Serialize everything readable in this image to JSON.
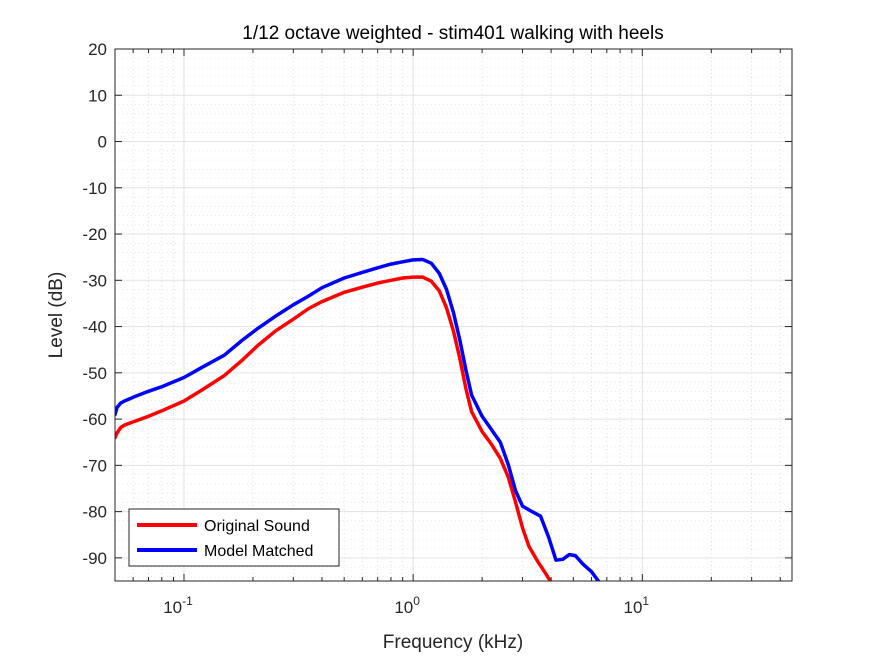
{
  "chart_data": {
    "type": "line",
    "title": "1/12 octave weighted - stim401 walking with heels",
    "xlabel": "Frequency (kHz)",
    "ylabel": "Level (dB)",
    "xscale": "log",
    "xlim": [
      0.05,
      45
    ],
    "ylim": [
      -95,
      20
    ],
    "grid": true,
    "minor_grid": true,
    "legend_position": "bottom-left",
    "yticks": [
      20,
      10,
      0,
      -10,
      -20,
      -30,
      -40,
      -50,
      -60,
      -70,
      -80,
      -90
    ],
    "ytick_labels": [
      "20",
      "10",
      "0",
      "-10",
      "-20",
      "-30",
      "-40",
      "-50",
      "-60",
      "-70",
      "-80",
      "-90"
    ],
    "xticks": [
      {
        "value": 0.1,
        "base": "10",
        "exp": "-1"
      },
      {
        "value": 1,
        "base": "10",
        "exp": "0"
      },
      {
        "value": 10,
        "base": "10",
        "exp": "1"
      }
    ],
    "series": [
      {
        "name": "Original Sound",
        "color": "#ff0000",
        "x": [
          0.05,
          0.051,
          0.053,
          0.055,
          0.06,
          0.07,
          0.08,
          0.1,
          0.12,
          0.15,
          0.18,
          0.21,
          0.25,
          0.3,
          0.35,
          0.4,
          0.5,
          0.6,
          0.7,
          0.8,
          0.9,
          1.0,
          1.1,
          1.2,
          1.3,
          1.4,
          1.5,
          1.6,
          1.7,
          1.8,
          2.0,
          2.2,
          2.4,
          2.6,
          2.8,
          3.0,
          3.2,
          3.5,
          3.8,
          4.0
        ],
        "y": [
          -64,
          -63,
          -61.8,
          -61.3,
          -60.6,
          -59.4,
          -58.2,
          -56.1,
          -53.7,
          -50.6,
          -47.2,
          -44.1,
          -41.0,
          -38.4,
          -36.1,
          -34.6,
          -32.6,
          -31.5,
          -30.6,
          -30.0,
          -29.5,
          -29.3,
          -29.3,
          -30.2,
          -32.3,
          -36.0,
          -41.0,
          -47.0,
          -53.5,
          -58.4,
          -62.7,
          -65.5,
          -68.5,
          -72.5,
          -78.0,
          -83.5,
          -87.5,
          -90.8,
          -93.5,
          -95.3
        ]
      },
      {
        "name": "Model Matched",
        "color": "#0000ff",
        "x": [
          0.05,
          0.051,
          0.053,
          0.055,
          0.06,
          0.07,
          0.08,
          0.1,
          0.12,
          0.15,
          0.18,
          0.21,
          0.25,
          0.3,
          0.35,
          0.4,
          0.5,
          0.6,
          0.7,
          0.8,
          0.9,
          1.0,
          1.1,
          1.2,
          1.3,
          1.4,
          1.5,
          1.6,
          1.7,
          1.8,
          2.0,
          2.2,
          2.4,
          2.6,
          2.8,
          3.0,
          3.3,
          3.6,
          3.9,
          4.2,
          4.5,
          4.8,
          5.1,
          5.5,
          6.0,
          6.5
        ],
        "y": [
          -59,
          -57.5,
          -56.5,
          -56.1,
          -55.3,
          -54.0,
          -53.0,
          -51.0,
          -48.8,
          -46.2,
          -42.9,
          -40.4,
          -37.8,
          -35.3,
          -33.4,
          -31.6,
          -29.5,
          -28.3,
          -27.3,
          -26.5,
          -26.0,
          -25.6,
          -25.5,
          -26.3,
          -28.5,
          -32.0,
          -37.0,
          -43.0,
          -49.5,
          -54.8,
          -59.4,
          -62.3,
          -65.0,
          -69.8,
          -75.5,
          -78.8,
          -80.0,
          -81.0,
          -85.5,
          -90.5,
          -90.3,
          -89.3,
          -89.5,
          -91.3,
          -93.0,
          -95.3
        ]
      }
    ]
  }
}
